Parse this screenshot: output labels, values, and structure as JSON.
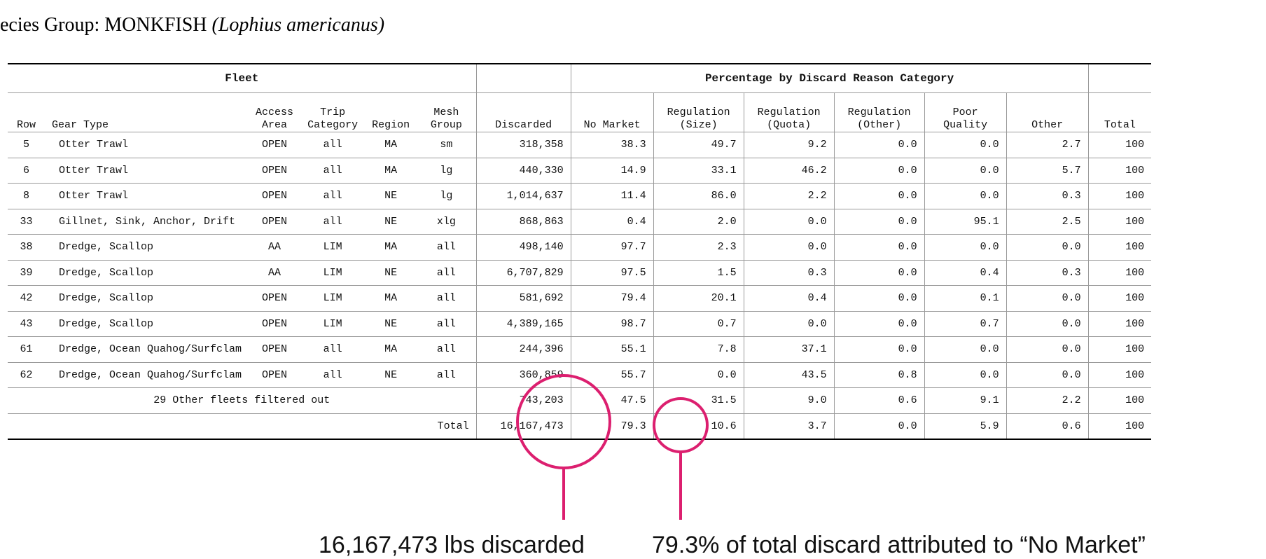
{
  "title": {
    "prefix": "ecies Group: MONKFISH ",
    "scientific": "(Lophius americanus)"
  },
  "table": {
    "group_headers": {
      "fleet": "Fleet",
      "percentage": "Percentage by Discard Reason Category"
    },
    "columns": {
      "row": "Row",
      "gear_type": "Gear Type",
      "access_area": [
        "Access",
        "Area"
      ],
      "trip_category": [
        "Trip",
        "Category"
      ],
      "region": "Region",
      "mesh_group": [
        "Mesh",
        "Group"
      ],
      "discarded": "Discarded",
      "no_market": "No Market",
      "reg_size": [
        "Regulation",
        "(Size)"
      ],
      "reg_quota": [
        "Regulation",
        "(Quota)"
      ],
      "reg_other": [
        "Regulation",
        "(Other)"
      ],
      "poor_quality": [
        "Poor",
        "Quality"
      ],
      "other": "Other",
      "total": "Total"
    },
    "rows": [
      [
        "5",
        "Otter Trawl",
        "OPEN",
        "all",
        "MA",
        "sm",
        "318,358",
        "38.3",
        "49.7",
        "9.2",
        "0.0",
        "0.0",
        "2.7",
        "100"
      ],
      [
        "6",
        "Otter Trawl",
        "OPEN",
        "all",
        "MA",
        "lg",
        "440,330",
        "14.9",
        "33.1",
        "46.2",
        "0.0",
        "0.0",
        "5.7",
        "100"
      ],
      [
        "8",
        "Otter Trawl",
        "OPEN",
        "all",
        "NE",
        "lg",
        "1,014,637",
        "11.4",
        "86.0",
        "2.2",
        "0.0",
        "0.0",
        "0.3",
        "100"
      ],
      [
        "33",
        "Gillnet, Sink, Anchor, Drift",
        "OPEN",
        "all",
        "NE",
        "xlg",
        "868,863",
        "0.4",
        "2.0",
        "0.0",
        "0.0",
        "95.1",
        "2.5",
        "100"
      ],
      [
        "38",
        "Dredge, Scallop",
        "AA",
        "LIM",
        "MA",
        "all",
        "498,140",
        "97.7",
        "2.3",
        "0.0",
        "0.0",
        "0.0",
        "0.0",
        "100"
      ],
      [
        "39",
        "Dredge, Scallop",
        "AA",
        "LIM",
        "NE",
        "all",
        "6,707,829",
        "97.5",
        "1.5",
        "0.3",
        "0.0",
        "0.4",
        "0.3",
        "100"
      ],
      [
        "42",
        "Dredge, Scallop",
        "OPEN",
        "LIM",
        "MA",
        "all",
        "581,692",
        "79.4",
        "20.1",
        "0.4",
        "0.0",
        "0.1",
        "0.0",
        "100"
      ],
      [
        "43",
        "Dredge, Scallop",
        "OPEN",
        "LIM",
        "NE",
        "all",
        "4,389,165",
        "98.7",
        "0.7",
        "0.0",
        "0.0",
        "0.7",
        "0.0",
        "100"
      ],
      [
        "61",
        "Dredge, Ocean Quahog/Surfclam",
        "OPEN",
        "all",
        "MA",
        "all",
        "244,396",
        "55.1",
        "7.8",
        "37.1",
        "0.0",
        "0.0",
        "0.0",
        "100"
      ],
      [
        "62",
        "Dredge, Ocean Quahog/Surfclam",
        "OPEN",
        "all",
        "NE",
        "all",
        "360,859",
        "55.7",
        "0.0",
        "43.5",
        "0.8",
        "0.0",
        "0.0",
        "100"
      ]
    ],
    "other_fleets": {
      "label": "29 Other fleets filtered out",
      "values": [
        "743,203",
        "47.5",
        "31.5",
        "9.0",
        "0.6",
        "9.1",
        "2.2",
        "100"
      ]
    },
    "total_row": {
      "label": "Total",
      "values": [
        "16,167,473",
        "79.3",
        "10.6",
        "3.7",
        "0.0",
        "5.9",
        "0.6",
        "100"
      ]
    }
  },
  "annotations": {
    "discarded": "16,167,473 lbs discarded",
    "no_market": "79.3% of total discard attributed to “No Market”"
  },
  "colors": {
    "accent": "#dc1f6f"
  }
}
